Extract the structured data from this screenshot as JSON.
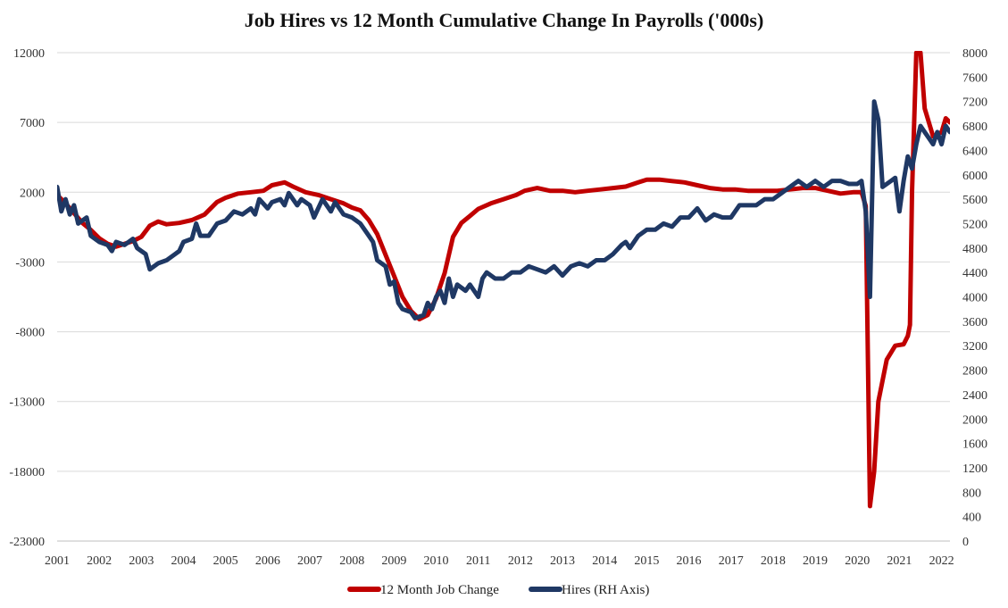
{
  "chart_data": {
    "type": "line",
    "title": "Job Hires vs 12 Month Cumulative Change In Payrolls ('000s)",
    "x_ticks": [
      "2001",
      "2002",
      "2003",
      "2004",
      "2005",
      "2006",
      "2007",
      "2008",
      "2009",
      "2010",
      "2011",
      "2012",
      "2013",
      "2014",
      "2015",
      "2016",
      "2017",
      "2018",
      "2019",
      "2020",
      "2021",
      "2022"
    ],
    "x_range": [
      2001,
      2022.2
    ],
    "y_left": {
      "ticks": [
        "12000",
        "7000",
        "2000",
        "-3000",
        "-8000",
        "-13000",
        "-18000",
        "-23000"
      ],
      "range": [
        -23000,
        12000
      ]
    },
    "y_right": {
      "ticks": [
        "8000",
        "7600",
        "7200",
        "6800",
        "6400",
        "6000",
        "5600",
        "5200",
        "4800",
        "4400",
        "4000",
        "3600",
        "3200",
        "2800",
        "2400",
        "2000",
        "1600",
        "1200",
        "800",
        "400",
        "0"
      ],
      "range": [
        0,
        8000
      ]
    },
    "grid": "horizontal",
    "legend_position": "bottom",
    "series": [
      {
        "name": "12 Month Job Change",
        "axis": "left",
        "color": "#c00000",
        "points": [
          [
            2001.0,
            1800
          ],
          [
            2001.2,
            1200
          ],
          [
            2001.4,
            500
          ],
          [
            2001.6,
            -200
          ],
          [
            2001.8,
            -700
          ],
          [
            2002.0,
            -1300
          ],
          [
            2002.2,
            -1700
          ],
          [
            2002.4,
            -1900
          ],
          [
            2002.6,
            -1700
          ],
          [
            2002.8,
            -1500
          ],
          [
            2003.0,
            -1200
          ],
          [
            2003.2,
            -400
          ],
          [
            2003.4,
            -100
          ],
          [
            2003.6,
            -300
          ],
          [
            2003.9,
            -200
          ],
          [
            2004.2,
            0
          ],
          [
            2004.5,
            400
          ],
          [
            2004.8,
            1300
          ],
          [
            2005.0,
            1600
          ],
          [
            2005.3,
            1900
          ],
          [
            2005.6,
            2000
          ],
          [
            2005.9,
            2100
          ],
          [
            2006.1,
            2500
          ],
          [
            2006.4,
            2700
          ],
          [
            2006.6,
            2400
          ],
          [
            2006.9,
            2000
          ],
          [
            2007.2,
            1800
          ],
          [
            2007.5,
            1500
          ],
          [
            2007.8,
            1200
          ],
          [
            2008.0,
            900
          ],
          [
            2008.2,
            700
          ],
          [
            2008.4,
            0
          ],
          [
            2008.6,
            -1000
          ],
          [
            2008.8,
            -2500
          ],
          [
            2009.0,
            -4000
          ],
          [
            2009.2,
            -5500
          ],
          [
            2009.4,
            -6500
          ],
          [
            2009.6,
            -7100
          ],
          [
            2009.8,
            -6800
          ],
          [
            2010.0,
            -5600
          ],
          [
            2010.2,
            -3800
          ],
          [
            2010.4,
            -1200
          ],
          [
            2010.6,
            -200
          ],
          [
            2010.8,
            300
          ],
          [
            2011.0,
            800
          ],
          [
            2011.3,
            1200
          ],
          [
            2011.6,
            1500
          ],
          [
            2011.9,
            1800
          ],
          [
            2012.1,
            2100
          ],
          [
            2012.4,
            2300
          ],
          [
            2012.7,
            2100
          ],
          [
            2013.0,
            2100
          ],
          [
            2013.3,
            2000
          ],
          [
            2013.6,
            2100
          ],
          [
            2013.9,
            2200
          ],
          [
            2014.2,
            2300
          ],
          [
            2014.5,
            2400
          ],
          [
            2014.8,
            2700
          ],
          [
            2015.0,
            2900
          ],
          [
            2015.3,
            2900
          ],
          [
            2015.6,
            2800
          ],
          [
            2015.9,
            2700
          ],
          [
            2016.2,
            2500
          ],
          [
            2016.5,
            2300
          ],
          [
            2016.8,
            2200
          ],
          [
            2017.1,
            2200
          ],
          [
            2017.4,
            2100
          ],
          [
            2017.8,
            2100
          ],
          [
            2018.1,
            2100
          ],
          [
            2018.4,
            2200
          ],
          [
            2018.7,
            2300
          ],
          [
            2019.0,
            2300
          ],
          [
            2019.3,
            2100
          ],
          [
            2019.6,
            1900
          ],
          [
            2019.9,
            2000
          ],
          [
            2020.1,
            2000
          ],
          [
            2020.2,
            1000
          ],
          [
            2020.3,
            -20500
          ],
          [
            2020.4,
            -18000
          ],
          [
            2020.5,
            -13000
          ],
          [
            2020.7,
            -10000
          ],
          [
            2020.9,
            -9000
          ],
          [
            2021.1,
            -8900
          ],
          [
            2021.2,
            -8300
          ],
          [
            2021.25,
            -7500
          ],
          [
            2021.3,
            2000
          ],
          [
            2021.4,
            12000
          ],
          [
            2021.5,
            12000
          ],
          [
            2021.6,
            8000
          ],
          [
            2021.8,
            6000
          ],
          [
            2022.0,
            6300
          ],
          [
            2022.1,
            7300
          ],
          [
            2022.2,
            7000
          ]
        ]
      },
      {
        "name": "Hires (RH Axis)",
        "axis": "right",
        "color": "#1f3864",
        "points": [
          [
            2001.0,
            5800
          ],
          [
            2001.1,
            5400
          ],
          [
            2001.2,
            5600
          ],
          [
            2001.3,
            5350
          ],
          [
            2001.4,
            5500
          ],
          [
            2001.5,
            5200
          ],
          [
            2001.7,
            5300
          ],
          [
            2001.8,
            5000
          ],
          [
            2002.0,
            4900
          ],
          [
            2002.2,
            4850
          ],
          [
            2002.3,
            4750
          ],
          [
            2002.4,
            4900
          ],
          [
            2002.6,
            4850
          ],
          [
            2002.8,
            4950
          ],
          [
            2002.9,
            4800
          ],
          [
            2003.0,
            4750
          ],
          [
            2003.1,
            4700
          ],
          [
            2003.2,
            4450
          ],
          [
            2003.4,
            4550
          ],
          [
            2003.6,
            4600
          ],
          [
            2003.8,
            4700
          ],
          [
            2003.9,
            4750
          ],
          [
            2004.0,
            4900
          ],
          [
            2004.2,
            4950
          ],
          [
            2004.3,
            5200
          ],
          [
            2004.4,
            5000
          ],
          [
            2004.6,
            5000
          ],
          [
            2004.8,
            5200
          ],
          [
            2005.0,
            5250
          ],
          [
            2005.2,
            5400
          ],
          [
            2005.4,
            5350
          ],
          [
            2005.6,
            5450
          ],
          [
            2005.7,
            5350
          ],
          [
            2005.8,
            5600
          ],
          [
            2006.0,
            5450
          ],
          [
            2006.1,
            5550
          ],
          [
            2006.3,
            5600
          ],
          [
            2006.4,
            5500
          ],
          [
            2006.5,
            5700
          ],
          [
            2006.7,
            5500
          ],
          [
            2006.8,
            5600
          ],
          [
            2007.0,
            5500
          ],
          [
            2007.1,
            5300
          ],
          [
            2007.3,
            5600
          ],
          [
            2007.5,
            5400
          ],
          [
            2007.6,
            5550
          ],
          [
            2007.8,
            5350
          ],
          [
            2008.0,
            5300
          ],
          [
            2008.2,
            5200
          ],
          [
            2008.4,
            5000
          ],
          [
            2008.5,
            4900
          ],
          [
            2008.6,
            4600
          ],
          [
            2008.8,
            4500
          ],
          [
            2008.9,
            4200
          ],
          [
            2009.0,
            4250
          ],
          [
            2009.1,
            3900
          ],
          [
            2009.2,
            3800
          ],
          [
            2009.4,
            3750
          ],
          [
            2009.5,
            3650
          ],
          [
            2009.7,
            3700
          ],
          [
            2009.8,
            3900
          ],
          [
            2009.9,
            3800
          ],
          [
            2010.0,
            4000
          ],
          [
            2010.1,
            4100
          ],
          [
            2010.2,
            3900
          ],
          [
            2010.3,
            4300
          ],
          [
            2010.4,
            4000
          ],
          [
            2010.5,
            4200
          ],
          [
            2010.7,
            4100
          ],
          [
            2010.8,
            4200
          ],
          [
            2011.0,
            4000
          ],
          [
            2011.1,
            4300
          ],
          [
            2011.2,
            4400
          ],
          [
            2011.4,
            4300
          ],
          [
            2011.6,
            4300
          ],
          [
            2011.8,
            4400
          ],
          [
            2012.0,
            4400
          ],
          [
            2012.2,
            4500
          ],
          [
            2012.4,
            4450
          ],
          [
            2012.6,
            4400
          ],
          [
            2012.8,
            4500
          ],
          [
            2013.0,
            4350
          ],
          [
            2013.2,
            4500
          ],
          [
            2013.4,
            4550
          ],
          [
            2013.6,
            4500
          ],
          [
            2013.8,
            4600
          ],
          [
            2014.0,
            4600
          ],
          [
            2014.2,
            4700
          ],
          [
            2014.4,
            4850
          ],
          [
            2014.5,
            4900
          ],
          [
            2014.6,
            4800
          ],
          [
            2014.8,
            5000
          ],
          [
            2015.0,
            5100
          ],
          [
            2015.2,
            5100
          ],
          [
            2015.4,
            5200
          ],
          [
            2015.6,
            5150
          ],
          [
            2015.8,
            5300
          ],
          [
            2016.0,
            5300
          ],
          [
            2016.2,
            5450
          ],
          [
            2016.4,
            5250
          ],
          [
            2016.6,
            5350
          ],
          [
            2016.8,
            5300
          ],
          [
            2017.0,
            5300
          ],
          [
            2017.2,
            5500
          ],
          [
            2017.4,
            5500
          ],
          [
            2017.6,
            5500
          ],
          [
            2017.8,
            5600
          ],
          [
            2018.0,
            5600
          ],
          [
            2018.2,
            5700
          ],
          [
            2018.4,
            5800
          ],
          [
            2018.6,
            5900
          ],
          [
            2018.8,
            5800
          ],
          [
            2019.0,
            5900
          ],
          [
            2019.2,
            5800
          ],
          [
            2019.4,
            5900
          ],
          [
            2019.6,
            5900
          ],
          [
            2019.8,
            5850
          ],
          [
            2020.0,
            5850
          ],
          [
            2020.1,
            5900
          ],
          [
            2020.2,
            5400
          ],
          [
            2020.3,
            4000
          ],
          [
            2020.4,
            7200
          ],
          [
            2020.5,
            6900
          ],
          [
            2020.6,
            5800
          ],
          [
            2020.8,
            5900
          ],
          [
            2020.9,
            5950
          ],
          [
            2021.0,
            5400
          ],
          [
            2021.1,
            5900
          ],
          [
            2021.2,
            6300
          ],
          [
            2021.3,
            6100
          ],
          [
            2021.4,
            6500
          ],
          [
            2021.5,
            6800
          ],
          [
            2021.6,
            6700
          ],
          [
            2021.7,
            6600
          ],
          [
            2021.8,
            6500
          ],
          [
            2021.9,
            6700
          ],
          [
            2022.0,
            6500
          ],
          [
            2022.1,
            6800
          ],
          [
            2022.2,
            6700
          ]
        ]
      }
    ]
  }
}
